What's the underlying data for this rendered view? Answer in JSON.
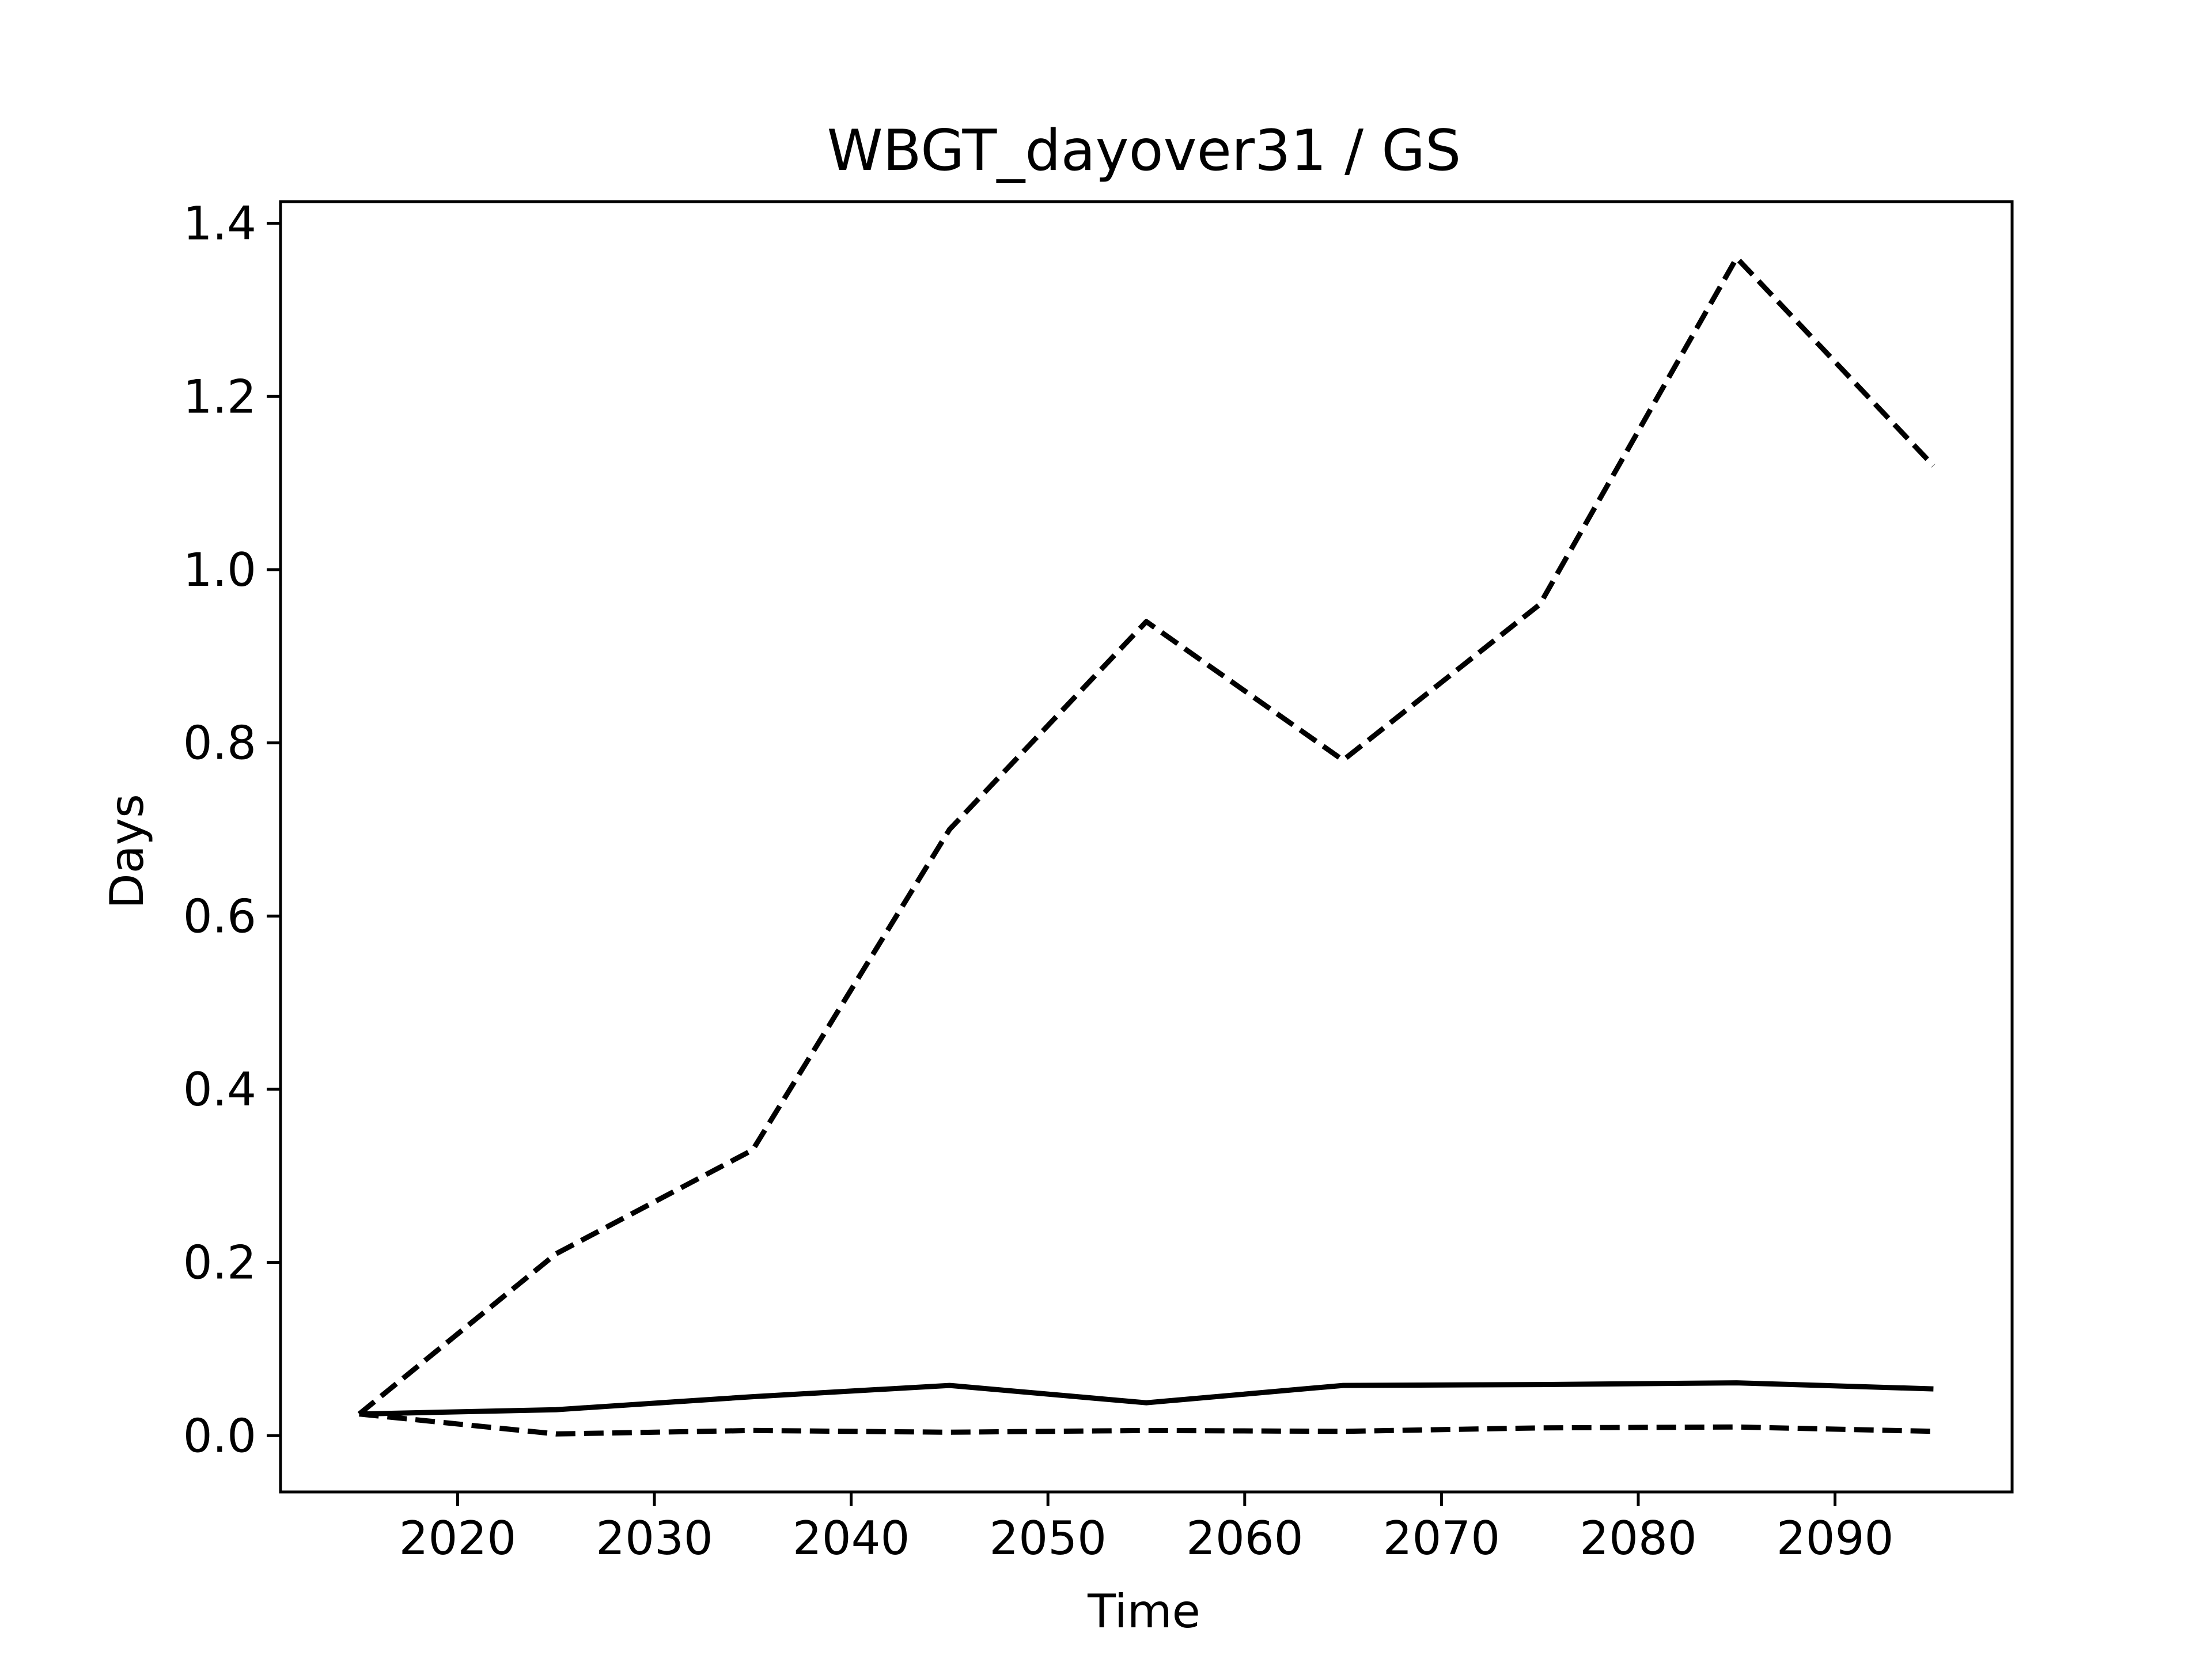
{
  "chart_data": {
    "type": "line",
    "title": "WBGT_dayover31 / GS",
    "xlabel": "Time",
    "ylabel": "Days",
    "xlim": [
      2011,
      2099
    ],
    "ylim": [
      -0.065,
      1.425
    ],
    "xticks": [
      2020,
      2030,
      2040,
      2050,
      2060,
      2070,
      2080,
      2090
    ],
    "yticks": [
      0.0,
      0.2,
      0.4,
      0.6,
      0.8,
      1.0,
      1.2,
      1.4
    ],
    "ytick_labels": [
      "0.0",
      "0.2",
      "0.4",
      "0.6",
      "0.8",
      "1.0",
      "1.2",
      "1.4"
    ],
    "xtick_labels": [
      "2020",
      "2030",
      "2040",
      "2050",
      "2060",
      "2070",
      "2080",
      "2090"
    ],
    "grid": false,
    "x": [
      2015,
      2025,
      2035,
      2045,
      2055,
      2065,
      2075,
      2085,
      2095
    ],
    "series": [
      {
        "style": "dashed",
        "color": "#000000",
        "values": [
          0.025,
          0.21,
          0.33,
          0.7,
          0.94,
          0.78,
          0.96,
          1.36,
          1.12
        ]
      },
      {
        "style": "solid",
        "color": "#000000",
        "values": [
          0.025,
          0.03,
          0.045,
          0.058,
          0.038,
          0.058,
          0.059,
          0.061,
          0.054
        ]
      },
      {
        "style": "dashed",
        "color": "#000000",
        "values": [
          0.025,
          0.002,
          0.006,
          0.004,
          0.006,
          0.005,
          0.009,
          0.01,
          0.005
        ]
      }
    ]
  }
}
